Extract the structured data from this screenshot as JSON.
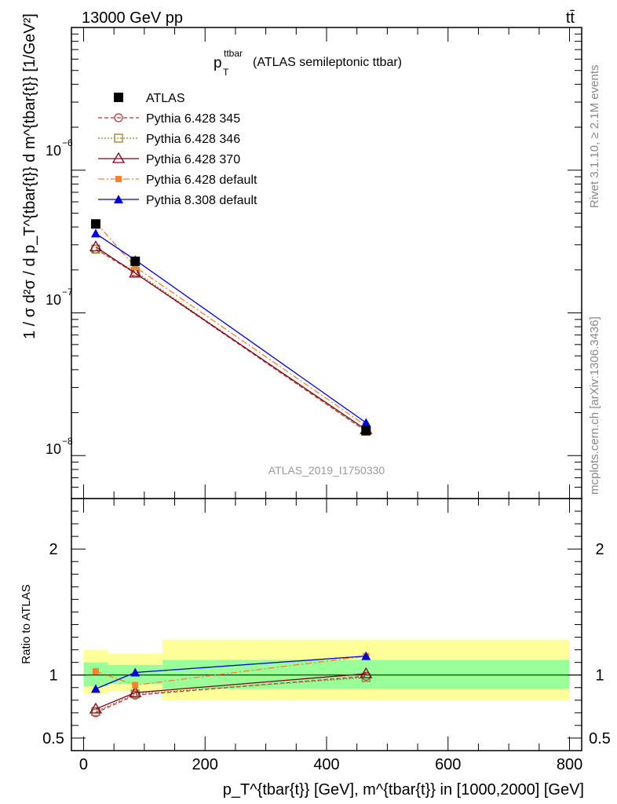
{
  "header": {
    "energy_label": "13000 GeV pp",
    "process_label": "tt̄",
    "side_label_top": "Rivet 3.1.10, ≥ 2.1M events",
    "side_label_bottom": "mcplots.cern.ch [arXiv:1306.3436]"
  },
  "chart_data": {
    "type": "line",
    "title_main": "p",
    "title_sub": "T",
    "title_sup": "ttbar",
    "title_rest": " (ATLAS semileptonic ttbar)",
    "watermark": "ATLAS_2019_I1750330",
    "ylabel": "1 / σ d²σ / d p_T^{tbar{t}} d m^{tbar{t}} [1/GeV²]",
    "ratio_ylabel": "Ratio to ATLAS",
    "xlabel": "p_T^{tbar{t}} [GeV], m^{tbar{t}} in [1000,2000] [GeV]",
    "xlim": [
      -20,
      820
    ],
    "ylim": [
      5e-09,
      1e-05
    ],
    "y_scale": "log",
    "ratio_ylim": [
      0.4,
      2.4
    ],
    "x_ticks": [
      "0",
      "200",
      "400",
      "600",
      "800"
    ],
    "y_tick_labels": {
      "m8": {
        "base": "10",
        "exp": "−8"
      },
      "m7": {
        "base": "10",
        "exp": "−7"
      },
      "m6": {
        "base": "10",
        "exp": "−6"
      }
    },
    "ratio_ticks": [
      "0.5",
      "1",
      "2"
    ],
    "x": [
      20,
      85,
      465
    ],
    "bins": [
      [
        0,
        40
      ],
      [
        40,
        130
      ],
      [
        130,
        800
      ]
    ],
    "band_inner": [
      [
        0.91,
        1.1
      ],
      [
        0.93,
        1.08
      ],
      [
        0.89,
        1.12
      ]
    ],
    "band_outer": [
      [
        0.85,
        1.2
      ],
      [
        0.87,
        1.17
      ],
      [
        0.8,
        1.28
      ]
    ],
    "series": [
      {
        "name": "ATLAS",
        "values": [
          4.2e-07,
          2.3e-07,
          1.5e-08
        ],
        "ratio": [
          1.0,
          1.0,
          1.0
        ],
        "color": "#000000",
        "marker": "square-filled",
        "dash": "none"
      },
      {
        "name": "Pythia 6.428 345",
        "values": [
          2.8e-07,
          1.9e-07,
          1.48e-08
        ],
        "ratio": [
          0.7,
          0.84,
          0.99
        ],
        "color": "#b03a3a",
        "marker": "circle-open",
        "dash": "5,3"
      },
      {
        "name": "Pythia 6.428 346",
        "values": [
          2.8e-07,
          1.95e-07,
          1.48e-08
        ],
        "ratio": [
          0.71,
          0.85,
          0.98
        ],
        "color": "#9a7a2a",
        "marker": "square-open",
        "dash": "2,2"
      },
      {
        "name": "Pythia 6.428 370",
        "values": [
          2.9e-07,
          1.9e-07,
          1.52e-08
        ],
        "ratio": [
          0.73,
          0.86,
          1.01
        ],
        "color": "#800020",
        "marker": "triangle-open",
        "dash": "none"
      },
      {
        "name": "Pythia 6.428 default",
        "values": [
          4.3e-07,
          2.1e-07,
          1.62e-08
        ],
        "ratio": [
          1.03,
          0.92,
          1.15
        ],
        "color": "#ff7f2a",
        "marker": "square-filled-small",
        "dash": "8,3,2,3"
      },
      {
        "name": "Pythia 8.308 default",
        "values": [
          3.6e-07,
          2.35e-07,
          1.7e-08
        ],
        "ratio": [
          0.89,
          1.02,
          1.15
        ],
        "color": "#0000dd",
        "marker": "triangle-filled",
        "dash": "none"
      }
    ]
  }
}
